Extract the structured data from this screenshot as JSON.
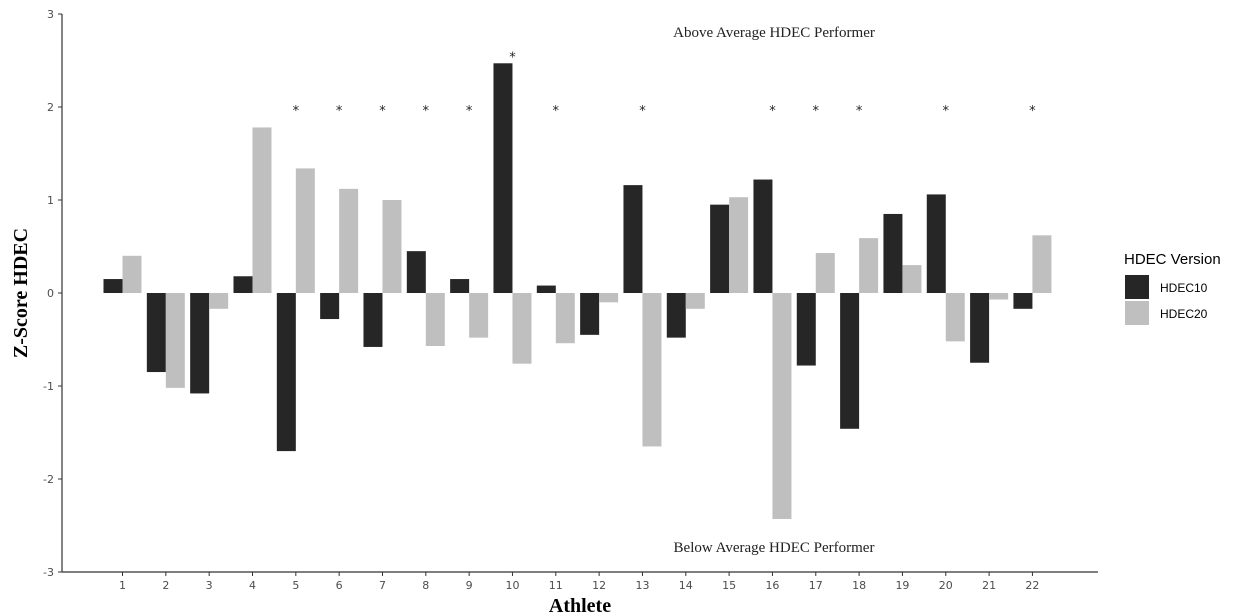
{
  "chart_data": {
    "type": "bar",
    "xlabel": "Athlete",
    "ylabel": "Z-Score HDEC",
    "ylim": [
      -3,
      3
    ],
    "y_ticks": [
      "-3",
      "-2",
      "-1",
      "0",
      "1",
      "2",
      "3"
    ],
    "categories": [
      "1",
      "2",
      "3",
      "4",
      "5",
      "6",
      "7",
      "8",
      "9",
      "10",
      "11",
      "12",
      "13",
      "14",
      "15",
      "16",
      "17",
      "18",
      "19",
      "20",
      "21",
      "22"
    ],
    "series": [
      {
        "name": "HDEC10",
        "color": "#262626",
        "values": [
          0.15,
          -0.85,
          -1.08,
          0.18,
          -1.7,
          -0.28,
          -0.58,
          0.45,
          0.15,
          2.47,
          0.08,
          -0.45,
          1.16,
          -0.48,
          0.95,
          1.22,
          -0.78,
          -1.46,
          0.85,
          1.06,
          -0.75,
          -0.17
        ]
      },
      {
        "name": "HDEC20",
        "color": "#bfbfbf",
        "values": [
          0.4,
          -1.02,
          -0.17,
          1.78,
          1.34,
          1.12,
          1.0,
          -0.57,
          -0.48,
          -0.76,
          -0.54,
          -0.1,
          -1.65,
          -0.17,
          1.03,
          -2.43,
          0.43,
          0.59,
          0.3,
          -0.52,
          -0.07,
          0.62
        ]
      }
    ],
    "significant": [
      "5",
      "6",
      "7",
      "8",
      "9",
      "10",
      "11",
      "13",
      "16",
      "17",
      "18",
      "20",
      "22"
    ],
    "significance_marker": "*",
    "annotations": {
      "top": "Above Average HDEC Performer",
      "bottom": "Below Average HDEC Performer"
    },
    "legend": {
      "title": "HDEC Version",
      "position": "right",
      "entries": [
        "HDEC10",
        "HDEC20"
      ]
    },
    "grid": false
  }
}
